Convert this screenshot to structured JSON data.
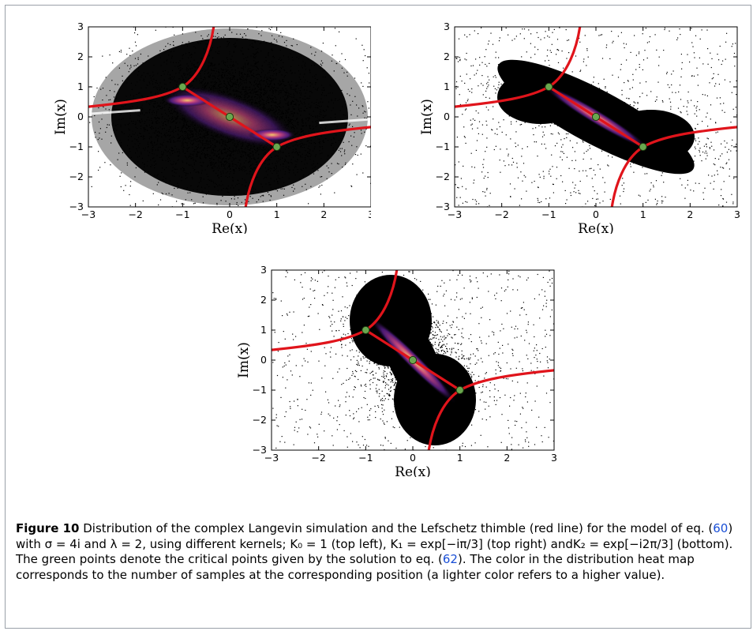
{
  "figure": {
    "label": "Figure 10",
    "caption_parts": {
      "t1": " Distribution of the complex Langevin simulation and the Lefschetz thimble (red line) for the model of eq. (",
      "r1": "60",
      "t2": ") with σ = 4i and λ = 2, using different kernels; K₀ = 1 (top left), K₁ = exp[−iπ/3] (top right) andK₂ = exp[−i2π/3] (bottom). The green points denote the critical points given by the solution to eq. (",
      "r2": "62",
      "t3": "). The color in the distribution heat map corresponds to the number of samples at the corresponding position (a lighter color refers to a higher value)."
    }
  },
  "colors": {
    "thimble": "#e0141b",
    "critical_point": "#6aa84f",
    "heat_low": "#000000",
    "heat_mid": "#5b1f8e",
    "heat_high": "#f4c66a"
  },
  "chart_data": [
    {
      "type": "scatter",
      "panel": "top-left",
      "xlabel": "Re(x)",
      "ylabel": "Im(x)",
      "xlim": [
        -3,
        3
      ],
      "ylim": [
        -3,
        3
      ],
      "xticks": [
        "−3",
        "−2",
        "−1",
        "0",
        "1",
        "2",
        "3"
      ],
      "yticks": [
        "3",
        "2",
        "1",
        "0",
        "−1",
        "−2",
        "−3"
      ],
      "critical_points": [
        [
          -1,
          1
        ],
        [
          0,
          0
        ],
        [
          1,
          -1
        ]
      ],
      "thimble_line": "red",
      "distribution": "broad ellipse filling most of the plot"
    },
    {
      "type": "scatter",
      "panel": "top-right",
      "xlabel": "Re(x)",
      "ylabel": "Im(x)",
      "xlim": [
        -3,
        3
      ],
      "ylim": [
        -3,
        3
      ],
      "xticks": [
        "−3",
        "−2",
        "−1",
        "0",
        "1",
        "2",
        "3"
      ],
      "yticks": [
        "3",
        "2",
        "1",
        "0",
        "−1",
        "−2",
        "−3"
      ],
      "critical_points": [
        [
          -1,
          1
        ],
        [
          0,
          0
        ],
        [
          1,
          -1
        ]
      ],
      "thimble_line": "red",
      "distribution": "elongated band along the diagonal"
    },
    {
      "type": "scatter",
      "panel": "bottom",
      "xlabel": "Re(x)",
      "ylabel": "Im(x)",
      "xlim": [
        -3,
        3
      ],
      "ylim": [
        -3,
        3
      ],
      "xticks": [
        "−3",
        "−2",
        "−1",
        "0",
        "1",
        "2",
        "3"
      ],
      "yticks": [
        "3",
        "2",
        "1",
        "0",
        "−1",
        "−2",
        "−3"
      ],
      "critical_points": [
        [
          -1,
          1
        ],
        [
          0,
          0
        ],
        [
          1,
          -1
        ]
      ],
      "thimble_line": "red",
      "distribution": "dumbbell-shaped cloud along the diagonal"
    }
  ]
}
